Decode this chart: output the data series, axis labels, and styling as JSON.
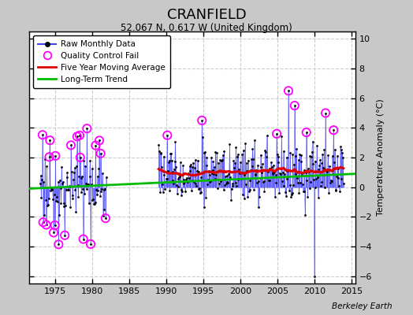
{
  "title": "CRANFIELD",
  "subtitle": "52.067 N, 0.617 W (United Kingdom)",
  "ylabel": "Temperature Anomaly (°C)",
  "credit": "Berkeley Earth",
  "xlim": [
    1971.5,
    2015.5
  ],
  "ylim": [
    -6.5,
    10.5
  ],
  "yticks": [
    -6,
    -4,
    -2,
    0,
    2,
    4,
    6,
    8,
    10
  ],
  "xticks": [
    1975,
    1980,
    1985,
    1990,
    1995,
    2000,
    2005,
    2010,
    2015
  ],
  "bg_color": "#c8c8c8",
  "plot_bg_color": "#ffffff",
  "raw_line_color": "#4444ff",
  "raw_dot_color": "#000000",
  "qc_fail_color": "#ff00ff",
  "moving_avg_color": "#dd0000",
  "trend_color": "#00bb00",
  "grid_color": "#cccccc",
  "seed": 77
}
